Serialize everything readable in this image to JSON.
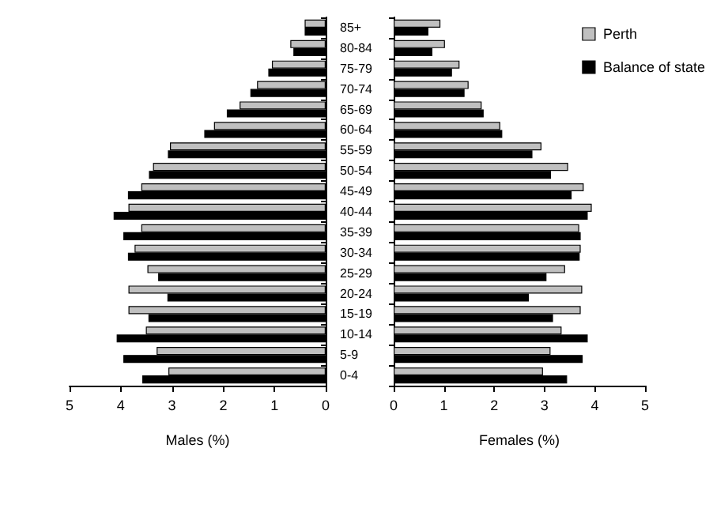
{
  "chart_data": [
    {
      "type": "bar",
      "orientation": "horizontal",
      "xlabel": "Males (%)",
      "categories": [
        null,
        null,
        null,
        null,
        null,
        null,
        null,
        null,
        null,
        null,
        null,
        null,
        null,
        null,
        null,
        null,
        null,
        null
      ],
      "series": [
        {
          "color": "#c0c0c0",
          "values": [
            0.41,
            0.69,
            1.05,
            1.34,
            1.68,
            2.18,
            3.04,
            3.37,
            3.6,
            3.85,
            3.6,
            3.73,
            3.48,
            3.85,
            3.85,
            3.51,
            3.3,
            3.07
          ]
        },
        {
          "color": "#000000",
          "values": [
            0.41,
            0.63,
            1.12,
            1.47,
            1.93,
            2.37,
            3.08,
            3.45,
            3.86,
            4.14,
            3.95,
            3.86,
            3.27,
            3.09,
            3.46,
            4.08,
            3.95,
            3.58
          ]
        }
      ],
      "xlim": [
        5,
        0
      ],
      "xticks": [
        5,
        4,
        3,
        2,
        1,
        0
      ],
      "tick_labels": "x",
      "grid": false,
      "legend": false
    },
    {
      "type": "bar",
      "orientation": "horizontal",
      "xlabel": "Females (%)",
      "categories": [
        "85+",
        "80-84",
        "75-79",
        "70-74",
        "65-69",
        "60-64",
        "55-59",
        "50-54",
        "45-49",
        "40-44",
        "35-39",
        "30-34",
        "25-29",
        "20-24",
        "15-19",
        "10-14",
        "5-9",
        "0-4"
      ],
      "series": [
        {
          "name": "Perth",
          "color": "#c0c0c0",
          "values": [
            0.93,
            1.02,
            1.31,
            1.49,
            1.75,
            2.12,
            2.94,
            3.47,
            3.78,
            3.94,
            3.69,
            3.72,
            3.41,
            3.75,
            3.72,
            3.34,
            3.12,
            2.97
          ]
        },
        {
          "name": "Balance of state",
          "color": "#000000",
          "values": [
            0.69,
            0.77,
            1.16,
            1.41,
            1.79,
            2.16,
            2.76,
            3.13,
            3.54,
            3.86,
            3.72,
            3.7,
            3.04,
            2.69,
            3.17,
            3.86,
            3.76,
            3.45
          ]
        }
      ],
      "xlim": [
        0,
        5
      ],
      "xticks": [
        0,
        1,
        2,
        3,
        4,
        5
      ],
      "grid": false,
      "legend": "top right"
    }
  ]
}
